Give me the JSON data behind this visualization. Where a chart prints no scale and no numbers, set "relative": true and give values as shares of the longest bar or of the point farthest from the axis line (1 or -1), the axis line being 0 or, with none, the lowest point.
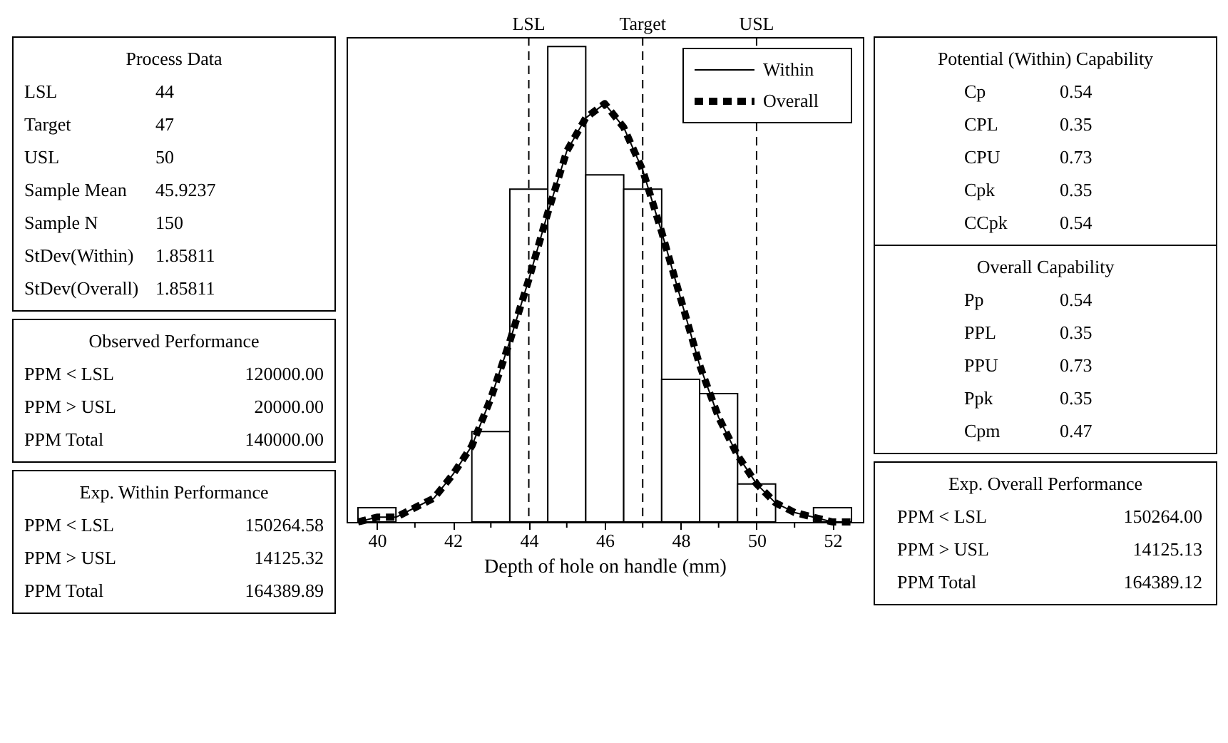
{
  "chart_data": {
    "type": "histogram",
    "relative": true,
    "xlabel": "Depth of hole on handle (mm)",
    "bins": [
      39.5,
      40.5,
      41.5,
      42.5,
      43.5,
      44.5,
      45.5,
      46.5,
      47.5,
      48.5,
      49.5,
      50.5,
      51.5,
      52.5
    ],
    "values": [
      0.03,
      0,
      0,
      0.19,
      0.7,
      1.0,
      0.73,
      0.7,
      0.3,
      0.27,
      0.08,
      0,
      0.03
    ],
    "color": "#ffffff",
    "series": [
      {
        "name": "Within",
        "type": "line",
        "color": "#000000",
        "line_style": "solid",
        "x": [
          39.5,
          40,
          40.5,
          41,
          41.5,
          42,
          42.5,
          43,
          43.5,
          44,
          44.5,
          45,
          45.5,
          46,
          46.5,
          47,
          47.5,
          48,
          48.5,
          49,
          49.5,
          50,
          50.5,
          51,
          51.5,
          52,
          52.5
        ],
        "values": [
          0.0,
          0.01,
          0.01,
          0.03,
          0.05,
          0.1,
          0.16,
          0.26,
          0.38,
          0.51,
          0.65,
          0.78,
          0.85,
          0.88,
          0.83,
          0.74,
          0.61,
          0.47,
          0.33,
          0.22,
          0.14,
          0.08,
          0.04,
          0.02,
          0.01,
          0.0,
          0.0
        ]
      },
      {
        "name": "Overall",
        "type": "line",
        "color": "#000000",
        "line_style": "dashed",
        "x": [
          39.5,
          40,
          40.5,
          41,
          41.5,
          42,
          42.5,
          43,
          43.5,
          44,
          44.5,
          45,
          45.5,
          46,
          46.5,
          47,
          47.5,
          48,
          48.5,
          49,
          49.5,
          50,
          50.5,
          51,
          51.5,
          52,
          52.5
        ],
        "values": [
          0.0,
          0.01,
          0.01,
          0.03,
          0.05,
          0.1,
          0.16,
          0.26,
          0.38,
          0.51,
          0.65,
          0.78,
          0.85,
          0.88,
          0.83,
          0.74,
          0.61,
          0.47,
          0.33,
          0.22,
          0.14,
          0.08,
          0.04,
          0.02,
          0.01,
          0.0,
          0.0
        ]
      }
    ],
    "xlim": [
      39.2,
      52.8
    ],
    "xticks": [
      40,
      {
        "value": 41,
        "label": null
      },
      42,
      {
        "value": 43,
        "label": null
      },
      44,
      {
        "value": 45,
        "label": null
      },
      46,
      {
        "value": 47,
        "label": null
      },
      48,
      {
        "value": 49,
        "label": null
      },
      50,
      {
        "value": 51,
        "label": null
      },
      52
    ],
    "tick_labels": "x",
    "grid": false,
    "legend": "top right",
    "ref_lines": [
      {
        "axis": "x",
        "value": 44,
        "label": "LSL",
        "line_style": "dashed"
      },
      {
        "axis": "x",
        "value": 47,
        "label": "Target",
        "line_style": "dashed"
      },
      {
        "axis": "x",
        "value": 50,
        "label": "USL",
        "line_style": "dashed"
      }
    ],
    "annotations": [
      "Process Data",
      "LSL",
      "44",
      "Target",
      "47",
      "USL",
      "50",
      "Sample Mean",
      "45.9237",
      "Sample N",
      "150",
      "StDev(Within)",
      "1.85811",
      "StDev(Overall)",
      "1.85811",
      "Observed Performance",
      "PPM < LSL",
      "120000.00",
      "PPM > USL",
      "20000.00",
      "PPM Total",
      "140000.00",
      "Exp. Within Performance",
      "PPM < LSL",
      "150264.58",
      "PPM > USL",
      "14125.32",
      "PPM Total",
      "164389.89",
      "Potential (Within) Capability",
      "Cp",
      "0.54",
      "CPL",
      "0.35",
      "CPU",
      "0.73",
      "Cpk",
      "0.35",
      "CCpk",
      "0.54",
      "Overall Capability",
      "Pp",
      "0.54",
      "PPL",
      "0.35",
      "PPU",
      "0.73",
      "Ppk",
      "0.35",
      "Cpm",
      "0.47",
      "Exp. Overall Performance",
      "PPM < LSL",
      "150264.00",
      "PPM > USL",
      "14125.13",
      "PPM Total",
      "164389.12"
    ]
  }
}
